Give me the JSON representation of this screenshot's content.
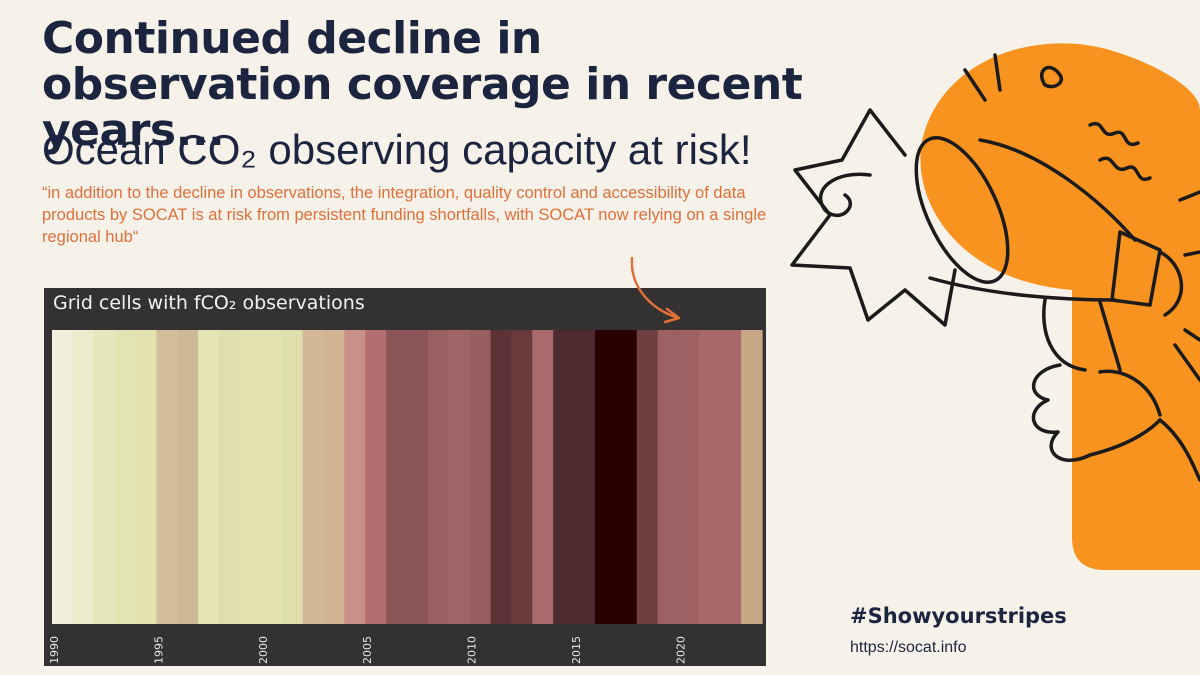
{
  "header": {
    "title": "Continued decline in observation coverage in recent years...",
    "subtitle": "Ocean CO₂ observing capacity at risk!",
    "quote": "“in addition to the decline in observations, the integration, quality control and accessibility of data products by SOCAT is at risk from persistent funding shortfalls, with SOCAT now relying on a single regional hub“"
  },
  "footer": {
    "hashtag": "#Showyourstripes",
    "url": "https://socat.info"
  },
  "colors": {
    "title": "#1c2540",
    "quote": "#e0703a",
    "accent": "#f7931e",
    "chart_bg": "#333131"
  },
  "icons": [
    "megaphone-icon",
    "curved-arrow-icon"
  ],
  "chart_data": {
    "type": "heatmap",
    "title": "Grid cells with fCO₂ observations",
    "x": [
      1990,
      1991,
      1992,
      1993,
      1994,
      1995,
      1996,
      1997,
      1998,
      1999,
      2000,
      2001,
      2002,
      2003,
      2004,
      2005,
      2006,
      2007,
      2008,
      2009,
      2010,
      2011,
      2012,
      2013,
      2014,
      2015,
      2016,
      2017,
      2018,
      2019,
      2020,
      2021,
      2022,
      2023
    ],
    "colors": [
      "#f1efdc",
      "#ecebcb",
      "#e6e6be",
      "#e3e4b4",
      "#e4e3b0",
      "#d4bf9c",
      "#cfb898",
      "#e5e4b3",
      "#dedeaf",
      "#e3e3b2",
      "#e3e3b2",
      "#dfdfad",
      "#d2b898",
      "#d2b393",
      "#c89088",
      "#b46e6f",
      "#8a5556",
      "#8b5557",
      "#9a5f60",
      "#a06466",
      "#985e60",
      "#5e3135",
      "#6b3a3d",
      "#a86a6c",
      "#4f2a2e",
      "#4f2a2e",
      "#2a0101",
      "#2a0101",
      "#6d3f41",
      "#9d6063",
      "#9d6063",
      "#a8696b",
      "#a8696b",
      "#c9a888"
    ],
    "xticks": [
      "1990",
      "1995",
      "2000",
      "2005",
      "2010",
      "2015",
      "2020"
    ],
    "xlabel": "",
    "ylabel": ""
  }
}
